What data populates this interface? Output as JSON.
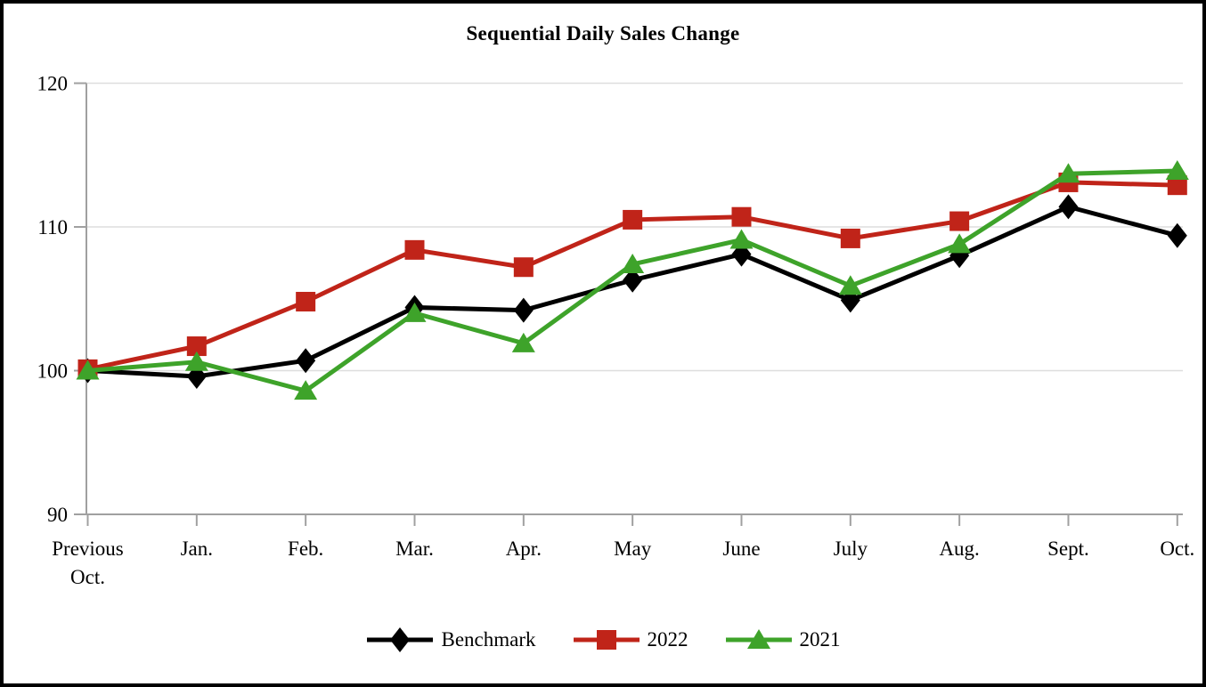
{
  "window": {
    "background_color": "#ffffff",
    "border_color": "#000000"
  },
  "chart_data": {
    "type": "line",
    "title": "Sequential Daily Sales Change",
    "categories": [
      "Previous\nOct.",
      "Jan.",
      "Feb.",
      "Mar.",
      "Apr.",
      "May",
      "June",
      "July",
      "Aug.",
      "Sept.",
      "Oct."
    ],
    "series": [
      {
        "name": "Benchmark",
        "color": "#000000",
        "marker": "diamond",
        "values": [
          100.0,
          99.6,
          100.7,
          104.4,
          104.2,
          106.3,
          108.1,
          104.9,
          108.0,
          111.4,
          109.4
        ]
      },
      {
        "name": "2022",
        "color": "#c02419",
        "marker": "square",
        "values": [
          100.1,
          101.7,
          104.8,
          108.4,
          107.2,
          110.5,
          110.7,
          109.2,
          110.4,
          113.1,
          112.9
        ]
      },
      {
        "name": "2021",
        "color": "#3ea32a",
        "marker": "triangle",
        "values": [
          100.0,
          100.6,
          98.6,
          104.0,
          101.9,
          107.4,
          109.1,
          105.9,
          108.8,
          113.7,
          113.9
        ]
      }
    ],
    "xlabel": "",
    "ylabel": "",
    "ylim": [
      90,
      120
    ],
    "yticks": [
      90,
      100,
      110,
      120
    ],
    "grid": "horizontal",
    "grid_color": "#dedede",
    "axis_color": "#a0a0a0",
    "text_color": "#000000",
    "legend_position": "bottom"
  }
}
